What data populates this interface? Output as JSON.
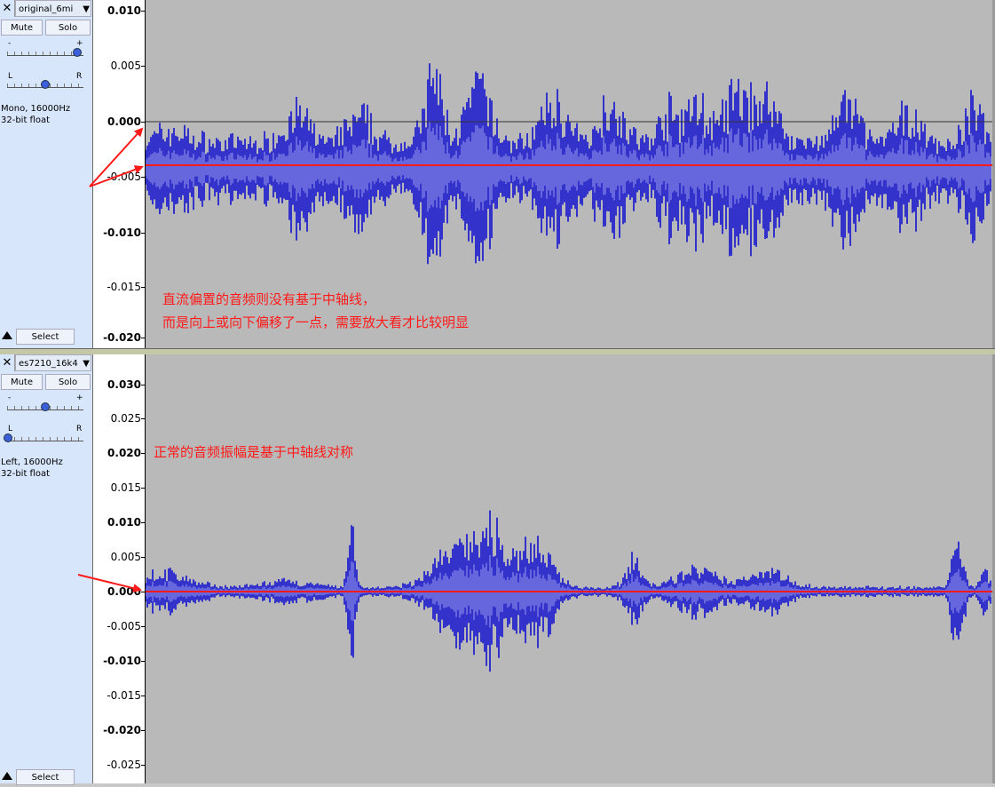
{
  "tracks": [
    {
      "name": "original_6mi",
      "mute_label": "Mute",
      "solo_label": "Solo",
      "gain_minus": "-",
      "gain_plus": "+",
      "pan_left": "L",
      "pan_right": "R",
      "info_line1": "Mono, 16000Hz",
      "info_line2": "32-bit float",
      "select_label": "Select",
      "gain_level": 0.92,
      "pan_level": 0.5,
      "ruler_ticks": [
        "0.010",
        "0.005",
        "0.000",
        "-0.005",
        "-0.010",
        "-0.015",
        "-0.020"
      ],
      "annotation_line1": "直流偏置的音频则没有基于中轴线，",
      "annotation_line2": "而是向上或向下偏移了一点，需要放大看才比较明显"
    },
    {
      "name": "es7210_16k4",
      "mute_label": "Mute",
      "solo_label": "Solo",
      "gain_minus": "-",
      "gain_plus": "+",
      "pan_left": "L",
      "pan_right": "R",
      "info_line1": "Left, 16000Hz",
      "info_line2": "32-bit float",
      "select_label": "Select",
      "gain_level": 0.5,
      "pan_level": 0.0,
      "ruler_ticks": [
        "0.030",
        "0.025",
        "0.020",
        "0.015",
        "0.010",
        "0.005",
        "0.000",
        "-0.005",
        "-0.010",
        "-0.015",
        "-0.020",
        "-0.025"
      ],
      "annotation_line1": "正常的音频振幅是基于中轴线对称"
    }
  ],
  "colors": {
    "waveform_outer": "#3333cc",
    "waveform_inner": "#6666dd",
    "wave_background": "#b9b9b9",
    "annotation_red": "#ff1a1a",
    "track_panel": "#d8e6fb"
  },
  "icons": {
    "close": "✕",
    "dropdown": "▼"
  }
}
